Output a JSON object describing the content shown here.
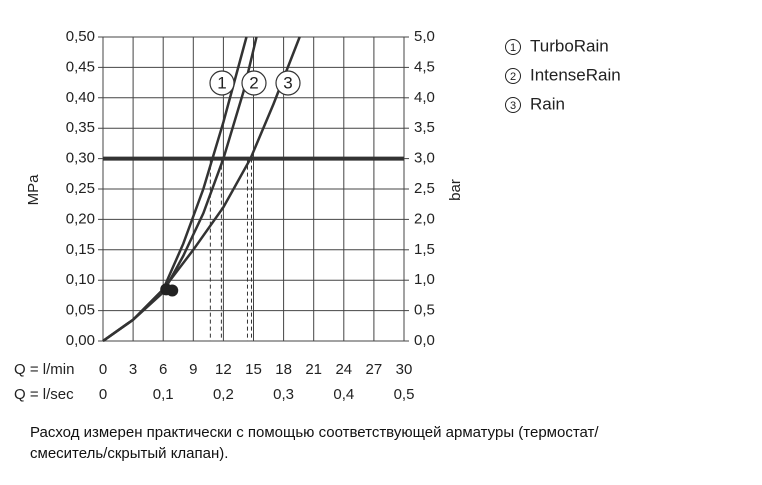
{
  "chart_data": {
    "type": "line",
    "y_label": "MPa",
    "y2_label": "bar",
    "x_label": "Q = l/min",
    "x2_label": "Q = l/sec",
    "xlim": [
      0,
      30
    ],
    "xticks": [
      0,
      3,
      6,
      9,
      12,
      15,
      18,
      21,
      24,
      27,
      30
    ],
    "x2lim": [
      0,
      0.5
    ],
    "x2ticks": [
      0,
      {
        "value": 0.1,
        "label": "0,1"
      },
      {
        "value": 0.2,
        "label": "0,2"
      },
      {
        "value": 0.3,
        "label": "0,3"
      },
      {
        "value": 0.4,
        "label": "0,4"
      },
      {
        "value": 0.5,
        "label": "0,5"
      }
    ],
    "ylim": [
      0,
      0.5
    ],
    "yticks": [
      {
        "value": 0,
        "label": "0,00"
      },
      {
        "value": 0.05,
        "label": "0,05"
      },
      {
        "value": 0.1,
        "label": "0,10"
      },
      {
        "value": 0.15,
        "label": "0,15"
      },
      {
        "value": 0.2,
        "label": "0,20"
      },
      {
        "value": 0.25,
        "label": "0,25"
      },
      {
        "value": 0.3,
        "label": "0,30"
      },
      {
        "value": 0.35,
        "label": "0,35"
      },
      {
        "value": 0.4,
        "label": "0,40"
      },
      {
        "value": 0.45,
        "label": "0,45"
      },
      {
        "value": 0.5,
        "label": "0,50"
      }
    ],
    "y2lim": [
      0,
      5
    ],
    "y2ticks": [
      {
        "value": 0,
        "label": "0,0"
      },
      {
        "value": 0.5,
        "label": "0,5"
      },
      {
        "value": 1,
        "label": "1,0"
      },
      {
        "value": 1.5,
        "label": "1,5"
      },
      {
        "value": 2,
        "label": "2,0"
      },
      {
        "value": 2.5,
        "label": "2,5"
      },
      {
        "value": 3,
        "label": "3,0"
      },
      {
        "value": 3.5,
        "label": "3,5"
      },
      {
        "value": 4,
        "label": "4,0"
      },
      {
        "value": 4.5,
        "label": "4,5"
      },
      {
        "value": 5,
        "label": "5,0"
      }
    ],
    "grid": true,
    "color": "#333333",
    "threshold": 0.3,
    "reference_flows": [
      10.7,
      11.8,
      14.4,
      14.8
    ],
    "markers": [
      {
        "x": 6.3,
        "y": 0.085
      },
      {
        "x": 6.9,
        "y": 0.083
      }
    ],
    "series": [
      {
        "name": "TurboRain",
        "label": "1",
        "x": [
          0,
          3,
          6,
          8,
          10,
          12,
          14.3
        ],
        "values": [
          0,
          0.035,
          0.085,
          0.16,
          0.25,
          0.36,
          0.5
        ]
      },
      {
        "name": "IntenseRain",
        "label": "2",
        "x": [
          0,
          3,
          6,
          8,
          10,
          12,
          14,
          15.3
        ],
        "values": [
          0,
          0.035,
          0.08,
          0.14,
          0.21,
          0.3,
          0.41,
          0.5
        ]
      },
      {
        "name": "Rain",
        "label": "3",
        "x": [
          0,
          3,
          6,
          9,
          12,
          14.7,
          17,
          19.6
        ],
        "values": [
          0,
          0.035,
          0.085,
          0.15,
          0.22,
          0.3,
          0.39,
          0.5
        ]
      }
    ]
  },
  "note_lines": [
    "Расход измерен практически с помощью соответствующей арматуры (термостат/",
    "смеситель/скрытый клапан)."
  ]
}
